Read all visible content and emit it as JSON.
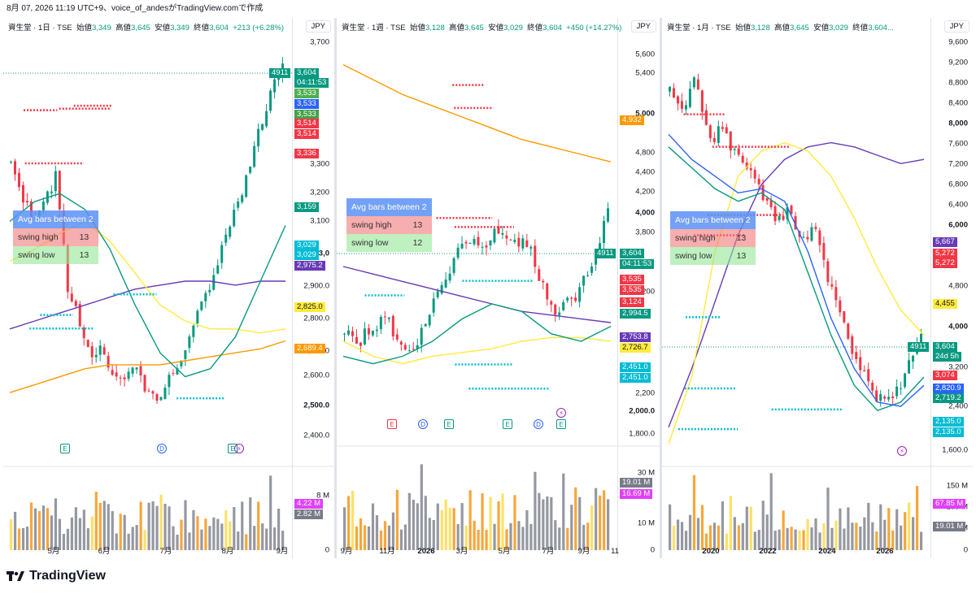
{
  "topbar": {
    "text": "8月 07, 2026 11:19 UTC+9、voice_of_andesがTradingView.comで作成"
  },
  "colors": {
    "up": "#089981",
    "down": "#f23645",
    "purple": "#673ab7",
    "orange": "#ff9800",
    "yellow": "#ffeb3b",
    "teal": "#00bcd4"
  },
  "panels": [
    {
      "id": "daily",
      "title": "資生堂 · 1日 · TSE",
      "o_label": "始値",
      "o": "3,349",
      "h_label": "高値",
      "h": "3,645",
      "l_label": "安値",
      "l": "3,349",
      "c_label": "終値",
      "c": "3,604",
      "chg": "+213 (+6.28%)",
      "currency": "JPY",
      "ticks": [
        {
          "v": "3,700",
          "b": false
        },
        {
          "v": "3,300",
          "b": false
        },
        {
          "v": "3,200",
          "b": false
        },
        {
          "v": "3,100",
          "b": false
        },
        {
          "v": "3,0",
          "b": true
        },
        {
          "v": "2,900.0",
          "b": false
        },
        {
          "v": "2,800.0",
          "b": false
        },
        {
          "v": "2,700.0",
          "b": false
        },
        {
          "v": "2,600.0",
          "b": false
        },
        {
          "v": "2,500.0",
          "b": true
        },
        {
          "v": "2,400.0",
          "b": false
        }
      ],
      "labels": [
        {
          "t": "3,604",
          "c": "#089981"
        },
        {
          "t": "04:11:53",
          "c": "#089981"
        },
        {
          "t": "3,533",
          "c": "#4caf50"
        },
        {
          "t": "3,533",
          "c": "#2962ff"
        },
        {
          "t": "3,533",
          "c": "#43a047"
        },
        {
          "t": "3,514",
          "c": "#f23645"
        },
        {
          "t": "3,514",
          "c": "#f23645"
        },
        {
          "t": "3,336",
          "c": "#f23645"
        },
        {
          "t": "3,159",
          "c": "#089981"
        },
        {
          "t": "3,029",
          "c": "#00bcd4"
        },
        {
          "t": "3,029",
          "c": "#00bcd4"
        },
        {
          "t": "2,975.2",
          "c": "#673ab7"
        },
        {
          "t": "2,825.0",
          "c": "#ffeb3b"
        },
        {
          "t": "2,689.4",
          "c": "#ff9800"
        }
      ],
      "ticker_tag": "4911",
      "vol_ticks": [
        "8 M",
        "0"
      ],
      "vol_labels": [
        {
          "t": "4.22 M",
          "c": "#e040fb"
        },
        {
          "t": "2.82 M",
          "c": "#787b86"
        }
      ],
      "xticks": [
        {
          "t": "5月",
          "b": false
        },
        {
          "t": "6月",
          "b": false
        },
        {
          "t": "7月",
          "b": false
        },
        {
          "t": "8月",
          "b": false
        },
        {
          "t": "9月",
          "b": false
        }
      ],
      "table": {
        "title": "Avg bars between 2",
        "rows": [
          {
            "k": "swing high",
            "v": "13"
          },
          {
            "k": "swing low",
            "v": "13"
          }
        ]
      },
      "events": [
        {
          "t": "E",
          "k": "e"
        },
        {
          "t": "D",
          "k": "d"
        },
        {
          "t": "E",
          "k": "e"
        },
        {
          "t": "⚡",
          "k": "s"
        }
      ]
    },
    {
      "id": "weekly",
      "title": "資生堂 · 1週 · TSE",
      "o_label": "始値",
      "o": "3,128",
      "h_label": "高値",
      "h": "3,645",
      "l_label": "安値",
      "l": "3,029",
      "c_label": "終値",
      "c": "3,604",
      "chg": "+450 (+14.27%)",
      "currency": "JPY",
      "ticks": [
        {
          "v": "5,600",
          "b": false
        },
        {
          "v": "5,400",
          "b": false
        },
        {
          "v": "5,000",
          "b": true
        },
        {
          "v": "4,800",
          "b": false
        },
        {
          "v": "4,400",
          "b": false
        },
        {
          "v": "4,200",
          "b": false
        },
        {
          "v": "4,000",
          "b": true
        },
        {
          "v": "3,800",
          "b": false
        },
        {
          "v": "3,200",
          "b": false
        },
        {
          "v": "2,200",
          "b": false
        },
        {
          "v": "2,000.0",
          "b": true
        },
        {
          "v": "1,800.0",
          "b": false
        }
      ],
      "labels": [
        {
          "t": "4,932",
          "c": "#ff9800"
        },
        {
          "t": "3,604",
          "c": "#089981"
        },
        {
          "t": "04:11:53",
          "c": "#089981"
        },
        {
          "t": "3,535",
          "c": "#f23645"
        },
        {
          "t": "3,535",
          "c": "#f23645"
        },
        {
          "t": "3,124",
          "c": "#f23645"
        },
        {
          "t": "2,994.5",
          "c": "#089981"
        },
        {
          "t": "2,753.8",
          "c": "#673ab7"
        },
        {
          "t": "2,726.7",
          "c": "#ffeb3b"
        },
        {
          "t": "2,451.0",
          "c": "#00bcd4"
        },
        {
          "t": "2,451.0",
          "c": "#00bcd4"
        }
      ],
      "ticker_tag": "4911",
      "vol_ticks": [
        "30 M",
        "10 M",
        "0"
      ],
      "vol_labels": [
        {
          "t": "19.01 M",
          "c": "#787b86"
        },
        {
          "t": "16.69 M",
          "c": "#e040fb"
        }
      ],
      "xticks": [
        {
          "t": "9月",
          "b": false
        },
        {
          "t": "11月",
          "b": false
        },
        {
          "t": "2026",
          "b": true
        },
        {
          "t": "3月",
          "b": false
        },
        {
          "t": "5月",
          "b": false
        },
        {
          "t": "7月",
          "b": false
        },
        {
          "t": "9月",
          "b": false
        },
        {
          "t": "11",
          "b": false
        }
      ],
      "table": {
        "title": "Avg bars between 2",
        "rows": [
          {
            "k": "swing high",
            "v": "13"
          },
          {
            "k": "swing low",
            "v": "12"
          }
        ]
      },
      "events": [
        {
          "t": "E",
          "k": "er"
        },
        {
          "t": "D",
          "k": "d"
        },
        {
          "t": "E",
          "k": "e"
        },
        {
          "t": "E",
          "k": "e"
        },
        {
          "t": "D",
          "k": "d"
        },
        {
          "t": "E",
          "k": "e"
        },
        {
          "t": "⚡",
          "k": "s"
        }
      ]
    },
    {
      "id": "monthly",
      "title": "資生堂 · 1月 · TSE",
      "o_label": "始値",
      "o": "3,128",
      "h_label": "高値",
      "h": "3,645",
      "l_label": "安値",
      "l": "3,029",
      "c_label": "終値",
      "c": "3,604...",
      "chg": "",
      "currency": "JPY",
      "ticks": [
        {
          "v": "9,600",
          "b": false
        },
        {
          "v": "9,200",
          "b": false
        },
        {
          "v": "8,800",
          "b": false
        },
        {
          "v": "8,400",
          "b": false
        },
        {
          "v": "8,000",
          "b": true
        },
        {
          "v": "7,600",
          "b": false
        },
        {
          "v": "7,200",
          "b": false
        },
        {
          "v": "6,800",
          "b": false
        },
        {
          "v": "6,400",
          "b": false
        },
        {
          "v": "6,000",
          "b": true
        },
        {
          "v": "4,800",
          "b": false
        },
        {
          "v": "4,000",
          "b": true
        },
        {
          "v": "3,200",
          "b": false
        },
        {
          "v": "2,400",
          "b": false
        },
        {
          "v": "1,600.0",
          "b": false
        }
      ],
      "labels": [
        {
          "t": "5,667",
          "c": "#673ab7"
        },
        {
          "t": "5,272",
          "c": "#f23645"
        },
        {
          "t": "5,272",
          "c": "#f23645"
        },
        {
          "t": "4,455",
          "c": "#ffeb3b"
        },
        {
          "t": "3,604",
          "c": "#089981"
        },
        {
          "t": "24d 5h",
          "c": "#089981"
        },
        {
          "t": "3,074",
          "c": "#f23645"
        },
        {
          "t": "2,820.9",
          "c": "#2962ff"
        },
        {
          "t": "2,719.2",
          "c": "#089981"
        },
        {
          "t": "2,135.0",
          "c": "#00bcd4"
        },
        {
          "t": "2,135.0",
          "c": "#00bcd4"
        }
      ],
      "ticker_tag": "4911",
      "vol_ticks": [
        "150 M",
        "100 M",
        "50 M",
        "0"
      ],
      "vol_labels": [
        {
          "t": "67.85 M",
          "c": "#e040fb"
        },
        {
          "t": "19.01 M",
          "c": "#787b86"
        }
      ],
      "xticks": [
        {
          "t": "2020",
          "b": true
        },
        {
          "t": "2022",
          "b": true
        },
        {
          "t": "2024",
          "b": true
        },
        {
          "t": "2026",
          "b": true
        }
      ],
      "table": {
        "title": "Avg bars between 2",
        "rows": [
          {
            "k": "swing high",
            "v": "13"
          },
          {
            "k": "swing low",
            "v": "13"
          }
        ]
      },
      "events": [
        {
          "t": "⚡",
          "k": "s"
        }
      ]
    }
  ],
  "footer": {
    "brand": "TradingView"
  }
}
